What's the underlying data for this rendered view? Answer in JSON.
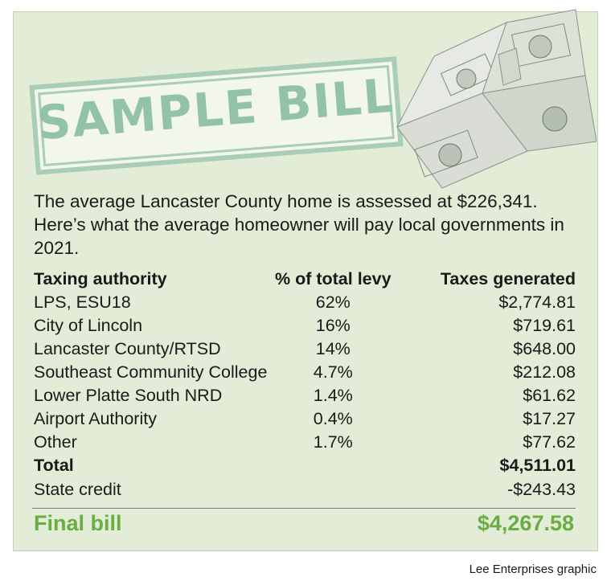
{
  "header": {
    "stamp_text": "SAMPLE BILL"
  },
  "intro": "The average Lancaster County home is assessed at $226,341. Here’s what the average homeowner will pay local governments in 2021.",
  "table": {
    "headers": [
      "Taxing authority",
      "% of total levy",
      "Taxes generated"
    ],
    "rows": [
      {
        "authority": "LPS, ESU18",
        "levy": "62%",
        "taxes": "$2,774.81"
      },
      {
        "authority": "City of Lincoln",
        "levy": "16%",
        "taxes": "$719.61"
      },
      {
        "authority": "Lancaster County/RTSD",
        "levy": "14%",
        "taxes": "$648.00"
      },
      {
        "authority": "Southeast Community College",
        "levy": "4.7%",
        "taxes": "$212.08"
      },
      {
        "authority": "Lower Platte South NRD",
        "levy": "1.4%",
        "taxes": "$61.62"
      },
      {
        "authority": "Airport Authority",
        "levy": "0.4%",
        "taxes": "$17.27"
      },
      {
        "authority": "Other",
        "levy": "1.7%",
        "taxes": "$77.62"
      }
    ],
    "total": {
      "label": "Total",
      "value": "$4,511.01"
    },
    "state_credit": {
      "label": "State credit",
      "value": "-$243.43"
    }
  },
  "final_bill": {
    "label": "Final bill",
    "value": "$4,267.58"
  },
  "credit": "Lee Enterprises graphic",
  "colors": {
    "panel": "#e3ecd6",
    "stamp": "#93c3a6",
    "final": "#6cac45"
  },
  "images": {
    "money_house": "house-made-of-dollar-bills"
  }
}
